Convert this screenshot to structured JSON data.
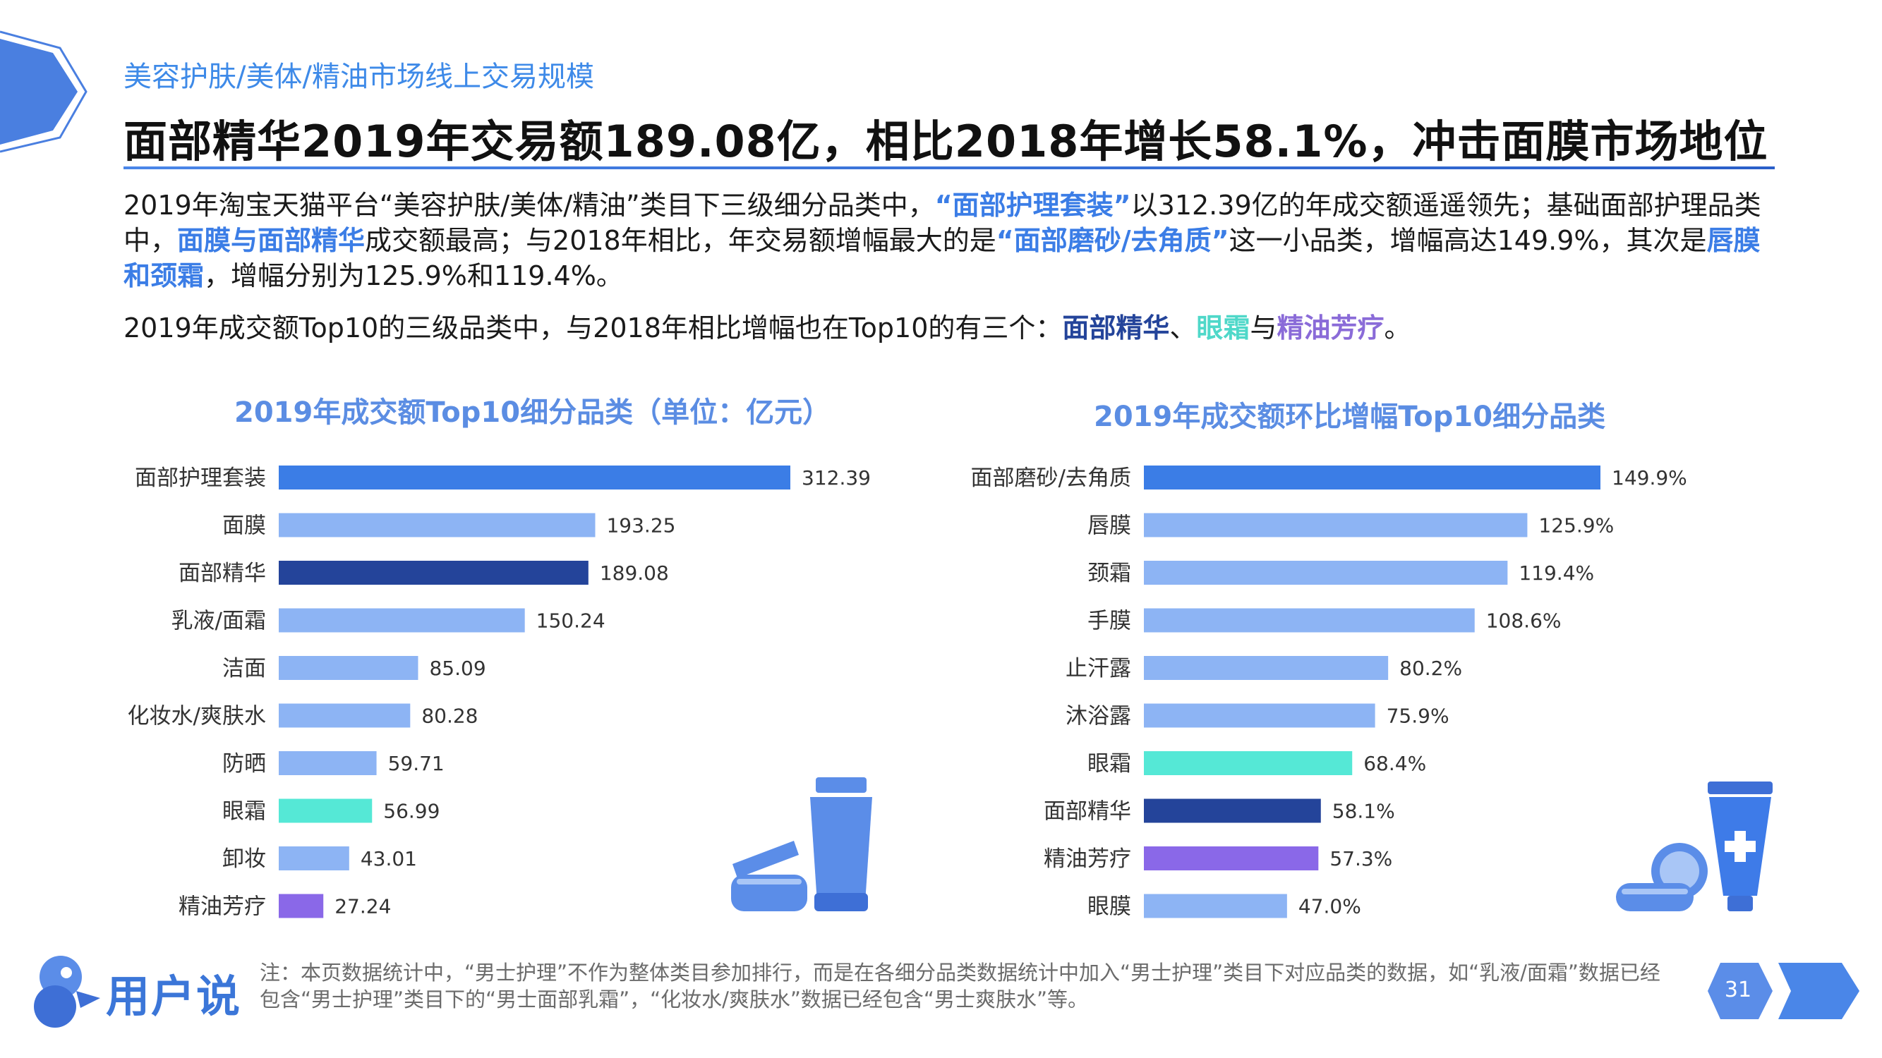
{
  "header": {
    "subtitle": "美容护肤/美体/精油市场线上交易规模",
    "headline": "面部精华2019年交易额189.08亿，相比2018年增长58.1%，冲击面膜市场地位"
  },
  "paragraph1": {
    "t1": "2019年淘宝天猫平台“美容护肤/美体/精油”类目下三级细分品类中，",
    "h1": "“面部护理套装”",
    "t2": "以312.39亿的年成交额遥遥领先；基础面部护理品类中，",
    "h2": "面膜与面部精华",
    "t3": "成交额最高；与2018年相比，年交易额增幅最大的是",
    "h3": "“面部磨砂/去角质”",
    "t4": "这一小品类，增幅高达149.9%，其次是",
    "h4": "唇膜和颈霜",
    "t5": "，增幅分别为125.9%和119.4%。"
  },
  "paragraph2": {
    "t1": "2019年成交额Top10的三级品类中，与2018年相比增幅也在Top10的有三个：",
    "h1": "面部精华",
    "s1": "、",
    "h2": "眼霜",
    "s2": "与",
    "h3": "精油芳疗",
    "t2": "。"
  },
  "colors": {
    "accent_blue": "#3b7de6",
    "light_blue": "#8db4f4",
    "navy": "#24449a",
    "teal": "#55e8d6",
    "purple": "#8a68e8"
  },
  "chart_data": [
    {
      "type": "bar",
      "orientation": "horizontal",
      "title": "2019年成交额Top10细分品类（单位：亿元）",
      "categories": [
        "面部护理套装",
        "面膜",
        "面部精华",
        "乳液/面霜",
        "洁面",
        "化妆水/爽肤水",
        "防晒",
        "眼霜",
        "卸妆",
        "精油芳疗"
      ],
      "values": [
        312.39,
        193.25,
        189.08,
        150.24,
        85.09,
        80.28,
        59.71,
        56.99,
        43.01,
        27.24
      ],
      "value_labels": [
        "312.39",
        "193.25",
        "189.08",
        "150.24",
        "85.09",
        "80.28",
        "59.71",
        "56.99",
        "43.01",
        "27.24"
      ],
      "bar_colors": [
        "#3b7de6",
        "#8db4f4",
        "#24449a",
        "#8db4f4",
        "#8db4f4",
        "#8db4f4",
        "#8db4f4",
        "#55e8d6",
        "#8db4f4",
        "#8a68e8"
      ],
      "xlim": [
        0,
        312.39
      ]
    },
    {
      "type": "bar",
      "orientation": "horizontal",
      "title": "2019年成交额环比增幅Top10细分品类",
      "categories": [
        "面部磨砂/去角质",
        "唇膜",
        "颈霜",
        "手膜",
        "止汗露",
        "沐浴露",
        "眼霜",
        "面部精华",
        "精油芳疗",
        "眼膜"
      ],
      "values": [
        149.9,
        125.9,
        119.4,
        108.6,
        80.2,
        75.9,
        68.4,
        58.1,
        57.3,
        47.0
      ],
      "value_labels": [
        "149.9%",
        "125.9%",
        "119.4%",
        "108.6%",
        "80.2%",
        "75.9%",
        "68.4%",
        "58.1%",
        "57.3%",
        "47.0%"
      ],
      "bar_colors": [
        "#3b7de6",
        "#8db4f4",
        "#8db4f4",
        "#8db4f4",
        "#8db4f4",
        "#8db4f4",
        "#55e8d6",
        "#24449a",
        "#8a68e8",
        "#8db4f4"
      ],
      "xlim": [
        0,
        149.9
      ]
    }
  ],
  "footnote": "注：本页数据统计中，“男士护理”不作为整体类目参加排行，而是在各细分品类数据统计中加入“男士护理”类目下对应品类的数据，如“乳液/面霜”数据已经包含“男士护理”类目下的“男士面部乳霜”，“化妆水/爽肤水”数据已经包含“男士爽肤水”等。",
  "logo": {
    "text": "用户说",
    "icon": "logo-icon"
  },
  "page": {
    "number": "31"
  }
}
